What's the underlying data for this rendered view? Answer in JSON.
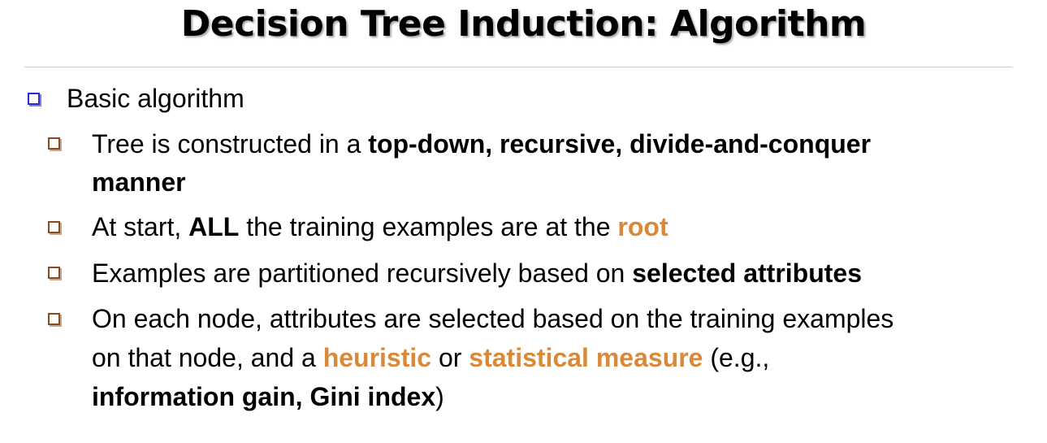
{
  "title": "Decision Tree Induction: Algorithm",
  "colors": {
    "main_bullet": "#2a2ad0",
    "sub_bullet": "#8a4a1e",
    "highlight": "#d8893a"
  },
  "main_bullet": {
    "icon": "hollow-square-bullet-icon",
    "text": "Basic algorithm"
  },
  "items": [
    {
      "icon": "hollow-square-bullet-icon",
      "line1_a": "Tree is constructed in a ",
      "line1_b": "top-down, recursive, divide-and-conquer",
      "line2": "manner"
    },
    {
      "icon": "hollow-square-bullet-icon",
      "a": "At start, ",
      "b": "ALL",
      "c": " the training examples are at the ",
      "d": "root"
    },
    {
      "icon": "hollow-square-bullet-icon",
      "a": "Examples are partitioned recursively based on ",
      "b": "selected attributes"
    },
    {
      "icon": "hollow-square-bullet-icon",
      "line1": "On each node, attributes are selected based on the training examples",
      "line2_a": "on that node, and a ",
      "line2_b": "heuristic",
      "line2_c": " or ",
      "line2_d": "statistical measure",
      "line2_e": " (e.g.,",
      "line3_a": "information gain, Gini index",
      "line3_b": ")"
    }
  ]
}
